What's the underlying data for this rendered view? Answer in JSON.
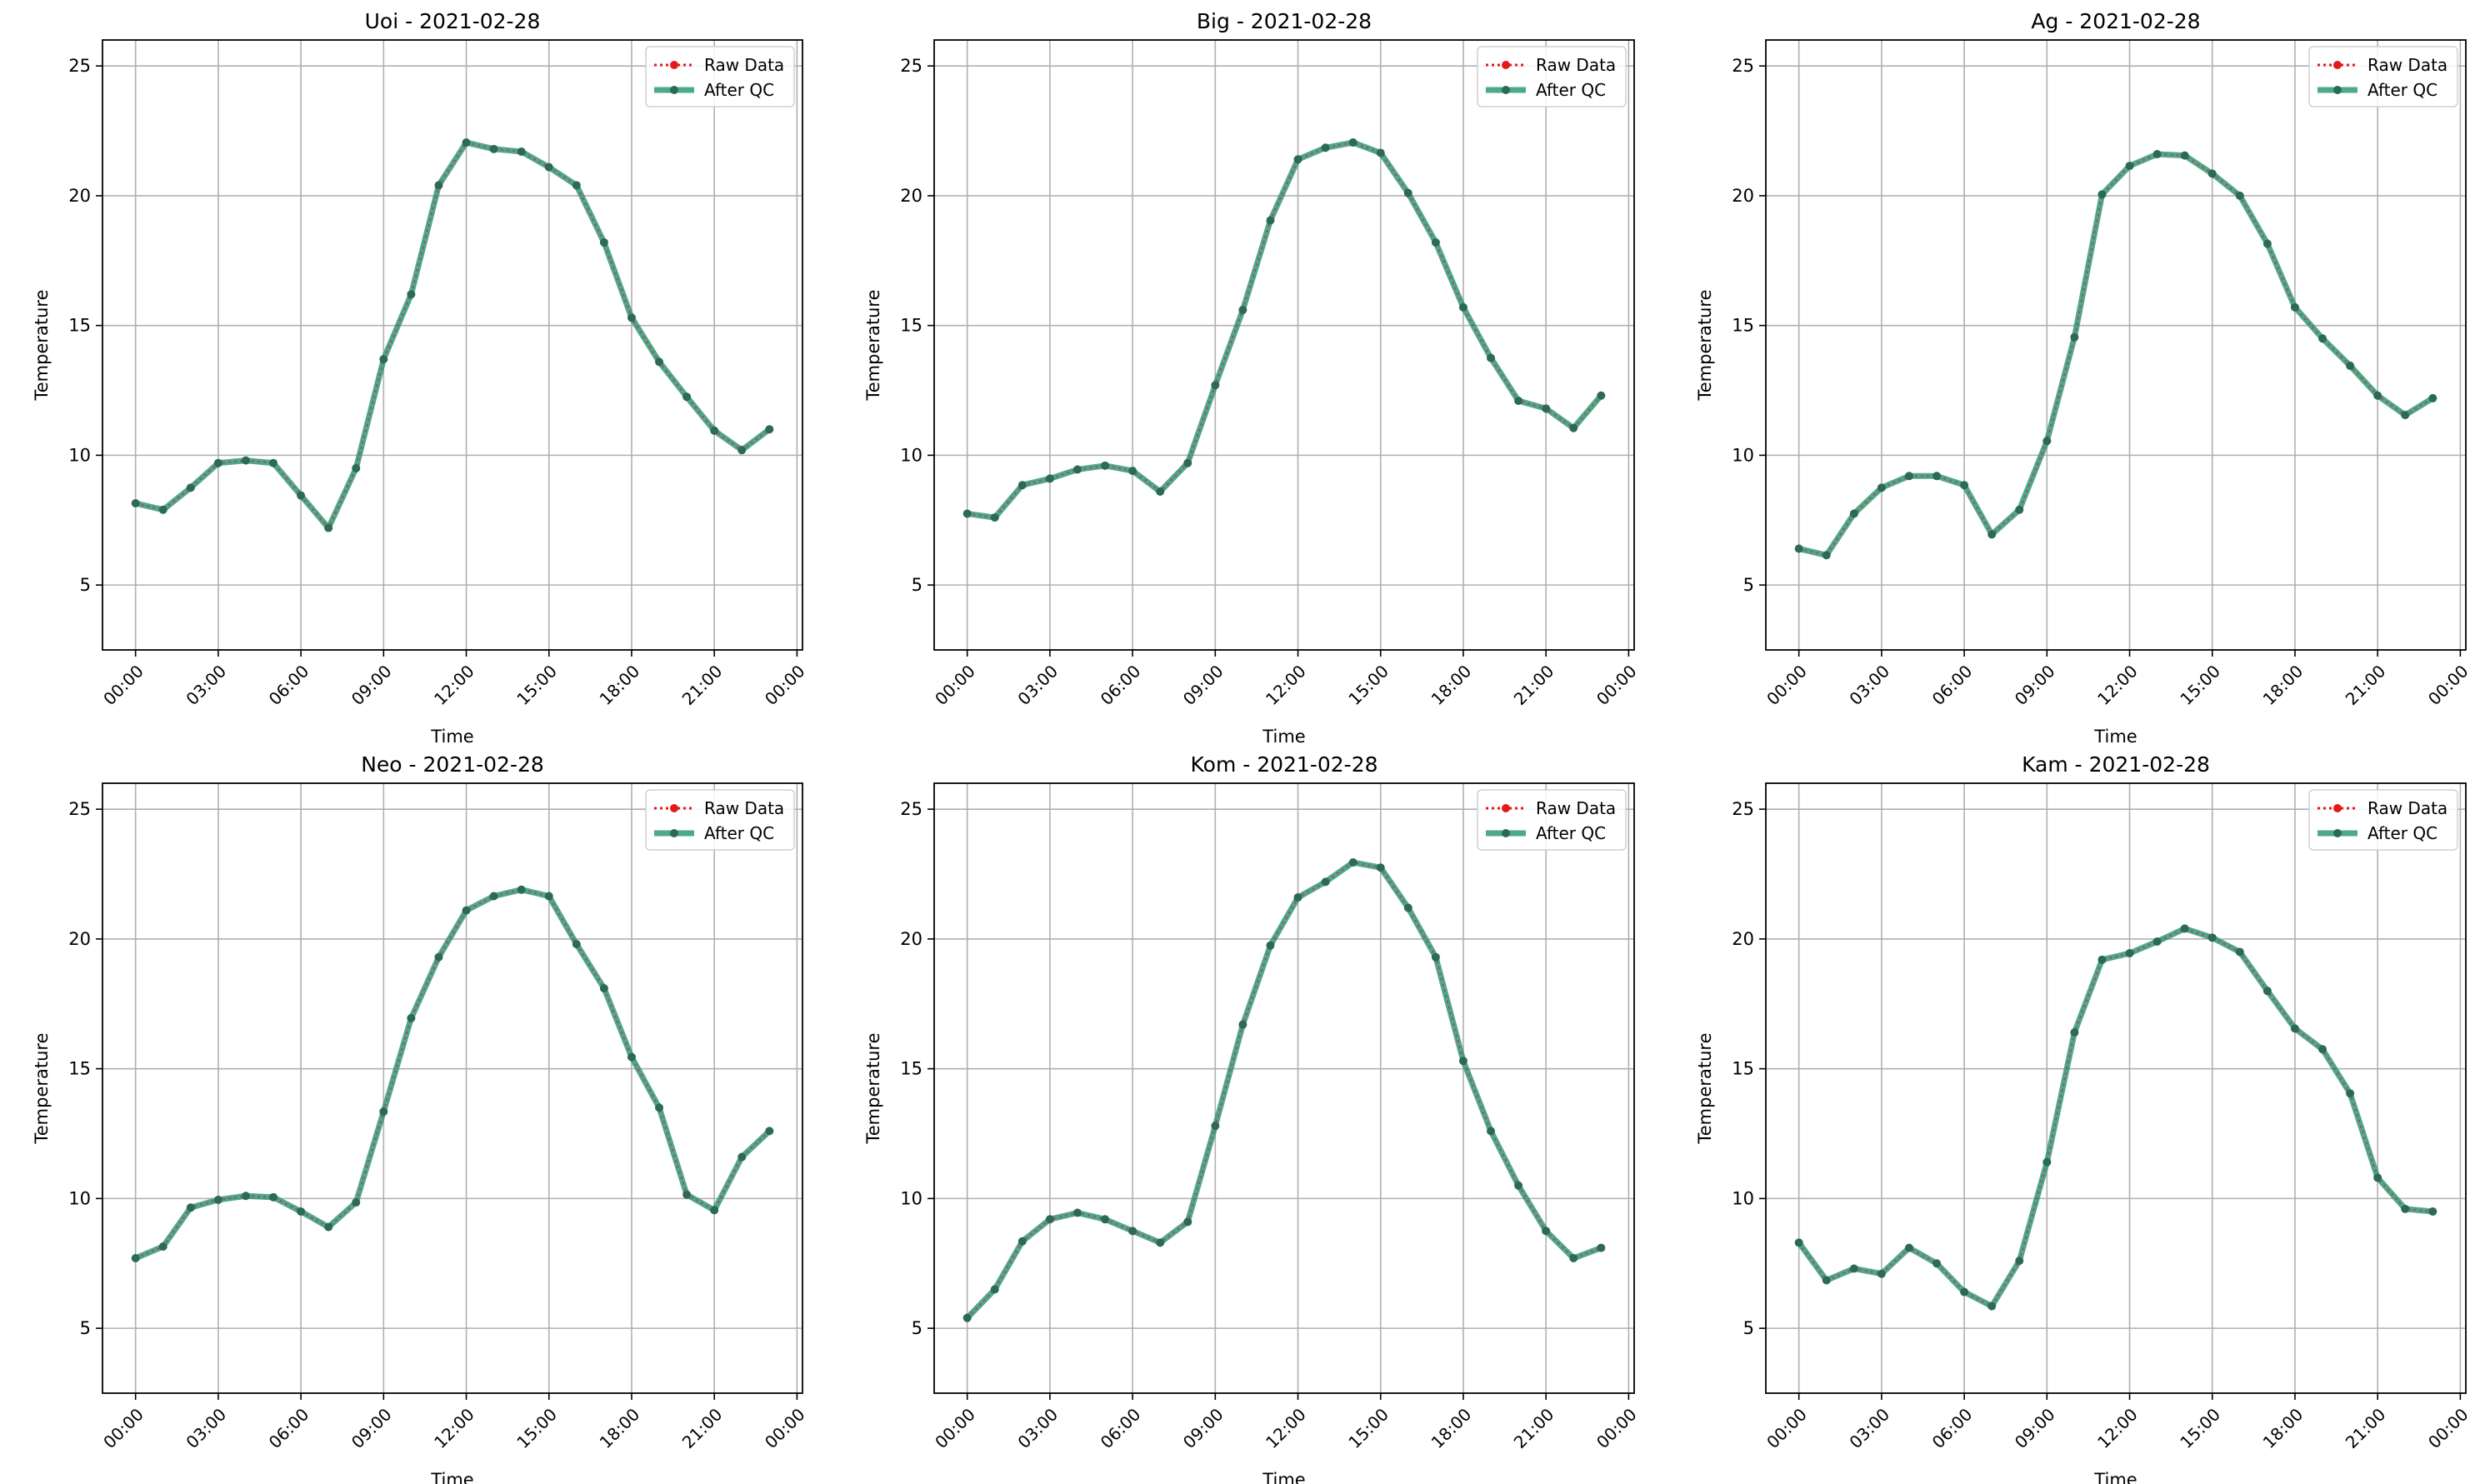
{
  "legend": {
    "raw_label": "Raw Data",
    "qc_label": "After QC"
  },
  "colors": {
    "raw": "#e31a1c",
    "qc": "#2e9a78",
    "marker": "#2d6a55",
    "grid": "#b0b0b0"
  },
  "chart_data": [
    {
      "type": "line",
      "title": "Uoi - 2021-02-28",
      "xlabel": "Time",
      "ylabel": "Temperature",
      "xticks": [
        "00:00",
        "03:00",
        "06:00",
        "09:00",
        "12:00",
        "15:00",
        "18:00",
        "21:00",
        "00:00"
      ],
      "yticks": [
        "5",
        "10",
        "15",
        "20",
        "25"
      ],
      "ylim": [
        2.5,
        26
      ],
      "grid": true,
      "legend_position": "top-right",
      "x": [
        "00:00",
        "01:00",
        "02:00",
        "03:00",
        "04:00",
        "05:00",
        "06:00",
        "07:00",
        "08:00",
        "09:00",
        "10:00",
        "11:00",
        "12:00",
        "13:00",
        "14:00",
        "15:00",
        "16:00",
        "17:00",
        "18:00",
        "19:00",
        "20:00",
        "21:00",
        "22:00",
        "23:00"
      ],
      "series": [
        {
          "name": "Raw Data",
          "values": [
            8.15,
            7.9,
            8.75,
            9.7,
            9.8,
            9.7,
            8.45,
            7.2,
            9.5,
            13.7,
            16.2,
            20.4,
            22.05,
            21.8,
            21.7,
            21.1,
            20.4,
            18.2,
            15.3,
            13.6,
            12.25,
            10.95,
            10.2,
            11.0
          ]
        },
        {
          "name": "After QC",
          "values": [
            8.15,
            7.9,
            8.75,
            9.7,
            9.8,
            9.7,
            8.45,
            7.2,
            9.5,
            13.7,
            16.2,
            20.4,
            22.05,
            21.8,
            21.7,
            21.1,
            20.4,
            18.2,
            15.3,
            13.6,
            12.25,
            10.95,
            10.2,
            11.0
          ]
        }
      ]
    },
    {
      "type": "line",
      "title": "Big - 2021-02-28",
      "xlabel": "Time",
      "ylabel": "Temperature",
      "xticks": [
        "00:00",
        "03:00",
        "06:00",
        "09:00",
        "12:00",
        "15:00",
        "18:00",
        "21:00",
        "00:00"
      ],
      "yticks": [
        "5",
        "10",
        "15",
        "20",
        "25"
      ],
      "ylim": [
        2.5,
        26
      ],
      "grid": true,
      "legend_position": "top-right",
      "x": [
        "00:00",
        "01:00",
        "02:00",
        "03:00",
        "04:00",
        "05:00",
        "06:00",
        "07:00",
        "08:00",
        "09:00",
        "10:00",
        "11:00",
        "12:00",
        "13:00",
        "14:00",
        "15:00",
        "16:00",
        "17:00",
        "18:00",
        "19:00",
        "20:00",
        "21:00",
        "22:00",
        "23:00"
      ],
      "series": [
        {
          "name": "Raw Data",
          "values": [
            7.75,
            7.6,
            8.85,
            9.1,
            9.45,
            9.6,
            9.4,
            8.6,
            9.7,
            12.7,
            15.6,
            19.05,
            21.4,
            21.85,
            22.05,
            21.65,
            20.1,
            18.2,
            15.7,
            13.75,
            12.1,
            11.8,
            11.05,
            12.3
          ]
        },
        {
          "name": "After QC",
          "values": [
            7.75,
            7.6,
            8.85,
            9.1,
            9.45,
            9.6,
            9.4,
            8.6,
            9.7,
            12.7,
            15.6,
            19.05,
            21.4,
            21.85,
            22.05,
            21.65,
            20.1,
            18.2,
            15.7,
            13.75,
            12.1,
            11.8,
            11.05,
            12.3
          ]
        }
      ]
    },
    {
      "type": "line",
      "title": "Ag - 2021-02-28",
      "xlabel": "Time",
      "ylabel": "Temperature",
      "xticks": [
        "00:00",
        "03:00",
        "06:00",
        "09:00",
        "12:00",
        "15:00",
        "18:00",
        "21:00",
        "00:00"
      ],
      "yticks": [
        "5",
        "10",
        "15",
        "20",
        "25"
      ],
      "ylim": [
        2.5,
        26
      ],
      "grid": true,
      "legend_position": "top-right",
      "x": [
        "00:00",
        "01:00",
        "02:00",
        "03:00",
        "04:00",
        "05:00",
        "06:00",
        "07:00",
        "08:00",
        "09:00",
        "10:00",
        "11:00",
        "12:00",
        "13:00",
        "14:00",
        "15:00",
        "16:00",
        "17:00",
        "18:00",
        "19:00",
        "20:00",
        "21:00",
        "22:00",
        "23:00"
      ],
      "series": [
        {
          "name": "Raw Data",
          "values": [
            6.4,
            6.15,
            7.75,
            8.75,
            9.2,
            9.2,
            8.85,
            6.95,
            7.9,
            10.55,
            14.55,
            20.05,
            21.15,
            21.6,
            21.55,
            20.85,
            20.0,
            18.15,
            15.7,
            14.5,
            13.45,
            12.3,
            11.55,
            12.2
          ]
        },
        {
          "name": "After QC",
          "values": [
            6.4,
            6.15,
            7.75,
            8.75,
            9.2,
            9.2,
            8.85,
            6.95,
            7.9,
            10.55,
            14.55,
            20.05,
            21.15,
            21.6,
            21.55,
            20.85,
            20.0,
            18.15,
            15.7,
            14.5,
            13.45,
            12.3,
            11.55,
            12.2
          ]
        }
      ]
    },
    {
      "type": "line",
      "title": "Neo - 2021-02-28",
      "xlabel": "Time",
      "ylabel": "Temperature",
      "xticks": [
        "00:00",
        "03:00",
        "06:00",
        "09:00",
        "12:00",
        "15:00",
        "18:00",
        "21:00",
        "00:00"
      ],
      "yticks": [
        "5",
        "10",
        "15",
        "20",
        "25"
      ],
      "ylim": [
        2.5,
        26
      ],
      "grid": true,
      "legend_position": "top-right",
      "x": [
        "00:00",
        "01:00",
        "02:00",
        "03:00",
        "04:00",
        "05:00",
        "06:00",
        "07:00",
        "08:00",
        "09:00",
        "10:00",
        "11:00",
        "12:00",
        "13:00",
        "14:00",
        "15:00",
        "16:00",
        "17:00",
        "18:00",
        "19:00",
        "20:00",
        "21:00",
        "22:00",
        "23:00"
      ],
      "series": [
        {
          "name": "Raw Data",
          "values": [
            7.7,
            8.15,
            9.65,
            9.95,
            10.1,
            10.05,
            9.5,
            8.9,
            9.85,
            13.35,
            16.95,
            19.3,
            21.1,
            21.65,
            21.9,
            21.65,
            19.8,
            18.1,
            15.45,
            13.5,
            10.15,
            9.55,
            11.6,
            12.6
          ]
        },
        {
          "name": "After QC",
          "values": [
            7.7,
            8.15,
            9.65,
            9.95,
            10.1,
            10.05,
            9.5,
            8.9,
            9.85,
            13.35,
            16.95,
            19.3,
            21.1,
            21.65,
            21.9,
            21.65,
            19.8,
            18.1,
            15.45,
            13.5,
            10.15,
            9.55,
            11.6,
            12.6
          ]
        }
      ]
    },
    {
      "type": "line",
      "title": "Kom - 2021-02-28",
      "xlabel": "Time",
      "ylabel": "Temperature",
      "xticks": [
        "00:00",
        "03:00",
        "06:00",
        "09:00",
        "12:00",
        "15:00",
        "18:00",
        "21:00",
        "00:00"
      ],
      "yticks": [
        "5",
        "10",
        "15",
        "20",
        "25"
      ],
      "ylim": [
        2.5,
        26
      ],
      "grid": true,
      "legend_position": "top-right",
      "x": [
        "00:00",
        "01:00",
        "02:00",
        "03:00",
        "04:00",
        "05:00",
        "06:00",
        "07:00",
        "08:00",
        "09:00",
        "10:00",
        "11:00",
        "12:00",
        "13:00",
        "14:00",
        "15:00",
        "16:00",
        "17:00",
        "18:00",
        "19:00",
        "20:00",
        "21:00",
        "22:00",
        "23:00"
      ],
      "series": [
        {
          "name": "Raw Data",
          "values": [
            5.4,
            6.5,
            8.35,
            9.2,
            9.45,
            9.2,
            8.75,
            8.3,
            9.1,
            12.8,
            16.7,
            19.75,
            21.6,
            22.2,
            22.95,
            22.75,
            21.2,
            19.3,
            15.3,
            12.6,
            10.5,
            8.75,
            7.7,
            8.1
          ]
        },
        {
          "name": "After QC",
          "values": [
            5.4,
            6.5,
            8.35,
            9.2,
            9.45,
            9.2,
            8.75,
            8.3,
            9.1,
            12.8,
            16.7,
            19.75,
            21.6,
            22.2,
            22.95,
            22.75,
            21.2,
            19.3,
            15.3,
            12.6,
            10.5,
            8.75,
            7.7,
            8.1
          ]
        }
      ]
    },
    {
      "type": "line",
      "title": "Kam - 2021-02-28",
      "xlabel": "Time",
      "ylabel": "Temperature",
      "xticks": [
        "00:00",
        "03:00",
        "06:00",
        "09:00",
        "12:00",
        "15:00",
        "18:00",
        "21:00",
        "00:00"
      ],
      "yticks": [
        "5",
        "10",
        "15",
        "20",
        "25"
      ],
      "ylim": [
        2.5,
        26
      ],
      "grid": true,
      "legend_position": "top-right",
      "x": [
        "00:00",
        "01:00",
        "02:00",
        "03:00",
        "04:00",
        "05:00",
        "06:00",
        "07:00",
        "08:00",
        "09:00",
        "10:00",
        "11:00",
        "12:00",
        "13:00",
        "14:00",
        "15:00",
        "16:00",
        "17:00",
        "18:00",
        "19:00",
        "20:00",
        "21:00",
        "22:00",
        "23:00"
      ],
      "series": [
        {
          "name": "Raw Data",
          "values": [
            8.3,
            6.85,
            7.3,
            7.1,
            8.1,
            7.5,
            6.4,
            5.85,
            7.6,
            11.4,
            16.4,
            19.2,
            19.45,
            19.9,
            20.4,
            20.05,
            19.5,
            18.0,
            16.55,
            15.75,
            14.05,
            10.8,
            9.6,
            9.5
          ]
        },
        {
          "name": "After QC",
          "values": [
            8.3,
            6.85,
            7.3,
            7.1,
            8.1,
            7.5,
            6.4,
            5.85,
            7.6,
            11.4,
            16.4,
            19.2,
            19.45,
            19.9,
            20.4,
            20.05,
            19.5,
            18.0,
            16.55,
            15.75,
            14.05,
            10.8,
            9.6,
            9.5
          ]
        }
      ]
    }
  ]
}
